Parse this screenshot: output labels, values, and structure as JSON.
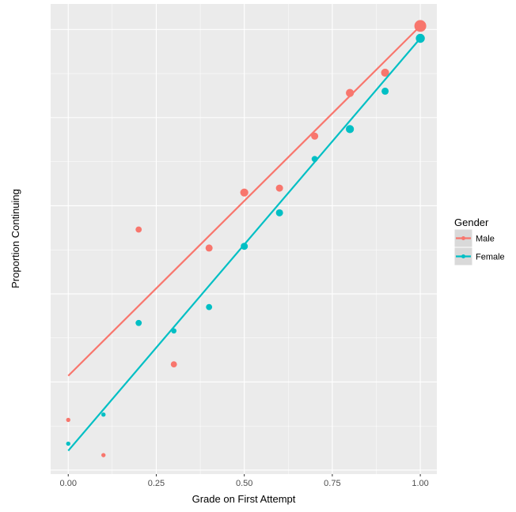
{
  "chart_data": {
    "type": "scatter",
    "title": "",
    "xlabel": "Grade on First Attempt",
    "ylabel": "Proportion Continuing",
    "xlim": [
      -0.05,
      1.047
    ],
    "ylim": [
      -0.045,
      5.29
    ],
    "x_ticks": [
      0,
      0.25,
      0.5,
      0.75,
      1.0
    ],
    "x_tick_labels": [
      "0.00",
      "0.25",
      "0.50",
      "0.75",
      "1.00"
    ],
    "y_ticks": [
      0,
      1,
      2,
      3,
      4,
      5
    ],
    "y_tick_labels_shown": false,
    "grid": true,
    "legend": {
      "title": "Gender",
      "placement": "right"
    },
    "series": [
      {
        "name": "Male",
        "color": "#F8766D",
        "x": [
          0,
          0.1,
          0.2,
          0.3,
          0.4,
          0.5,
          0.6,
          0.7,
          0.8,
          0.9,
          1.0
        ],
        "y": [
          0.57,
          0.17,
          2.73,
          1.2,
          2.52,
          3.15,
          3.2,
          3.79,
          4.28,
          4.51,
          5.04
        ],
        "size": [
          1,
          1,
          2,
          2,
          2.5,
          3,
          2.5,
          2.5,
          3,
          3,
          5
        ],
        "fit": {
          "x": [
            0,
            1
          ],
          "y": [
            1.07,
            5.04
          ]
        }
      },
      {
        "name": "Female",
        "color": "#00BFC4",
        "x": [
          0,
          0.1,
          0.2,
          0.3,
          0.4,
          0.5,
          0.6,
          0.7,
          0.8,
          0.9,
          1.0
        ],
        "y": [
          0.3,
          0.63,
          1.67,
          1.58,
          1.85,
          2.54,
          2.92,
          3.53,
          3.87,
          4.3,
          4.9
        ],
        "size": [
          1,
          1,
          2,
          1.5,
          2,
          2.5,
          2.5,
          2,
          3,
          2.5,
          3.5
        ],
        "fit": {
          "x": [
            0,
            1
          ],
          "y": [
            0.22,
            4.9
          ]
        }
      }
    ]
  }
}
